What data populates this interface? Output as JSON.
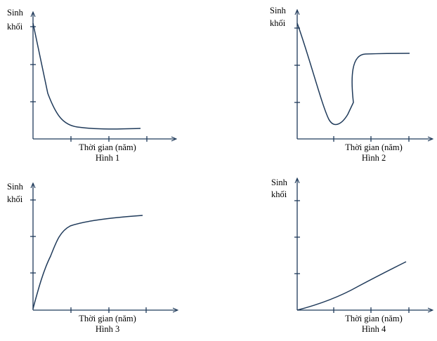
{
  "panels": [
    {
      "y_label": [
        "Sinh",
        "khối"
      ],
      "x_label": "Thời gian (năm)",
      "caption": "Hình 1"
    },
    {
      "y_label": [
        "Sinh",
        "khối"
      ],
      "x_label": "Thời gian (năm)",
      "caption": "Hình 2"
    },
    {
      "y_label": [
        "Sinh",
        "khối"
      ],
      "x_label": "Thời gian (năm)",
      "caption": "Hình 3"
    },
    {
      "y_label": [
        "Sinh",
        "khối"
      ],
      "x_label": "Thời gian (năm)",
      "caption": "Hình 4"
    }
  ]
}
